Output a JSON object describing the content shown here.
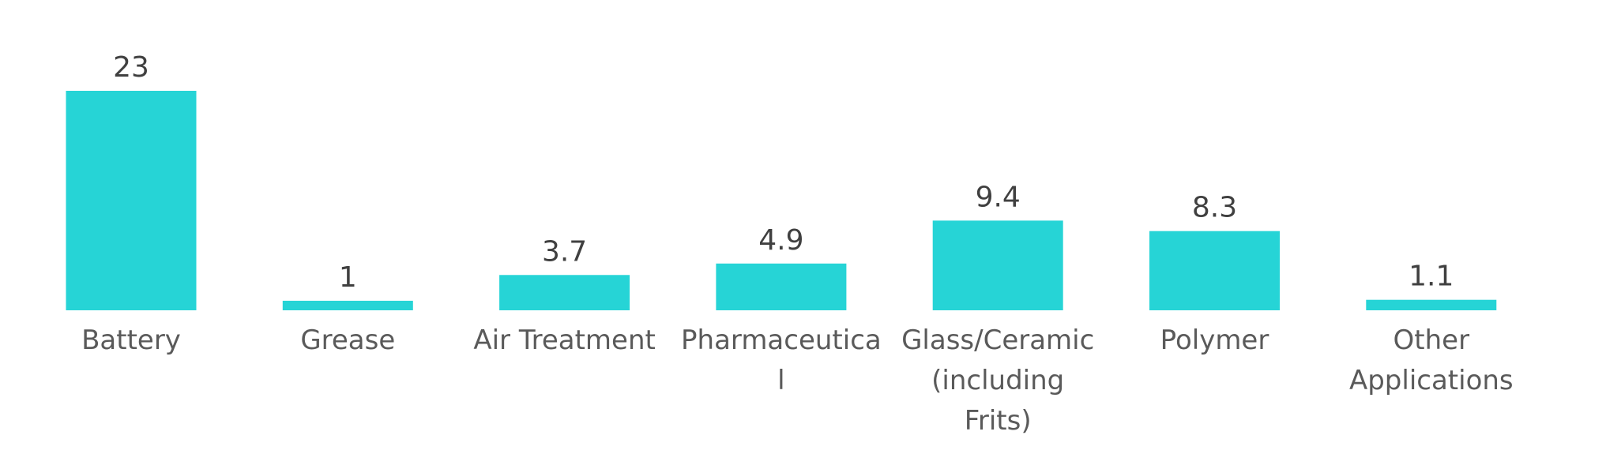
{
  "chart_data": {
    "type": "bar",
    "title": "",
    "xlabel": "",
    "ylabel": "",
    "categories": [
      [
        "Battery"
      ],
      [
        "Grease"
      ],
      [
        "Air Treatment"
      ],
      [
        "Pharmaceutica",
        "l"
      ],
      [
        "Glass/Ceramic",
        "(including",
        "Frits)"
      ],
      [
        "Polymer"
      ],
      [
        "Other",
        "Applications"
      ]
    ],
    "values": [
      23,
      1,
      3.7,
      4.9,
      9.4,
      8.3,
      1.1
    ],
    "value_labels": [
      "23",
      "1",
      "3.7",
      "4.9",
      "9.4",
      "8.3",
      "1.1"
    ],
    "ylim": [
      0,
      23
    ],
    "grid": false,
    "legend": "none",
    "colors": {
      "bar": "#26d4d6",
      "value_text": "#404040",
      "category_text": "#5a5a5a"
    }
  }
}
